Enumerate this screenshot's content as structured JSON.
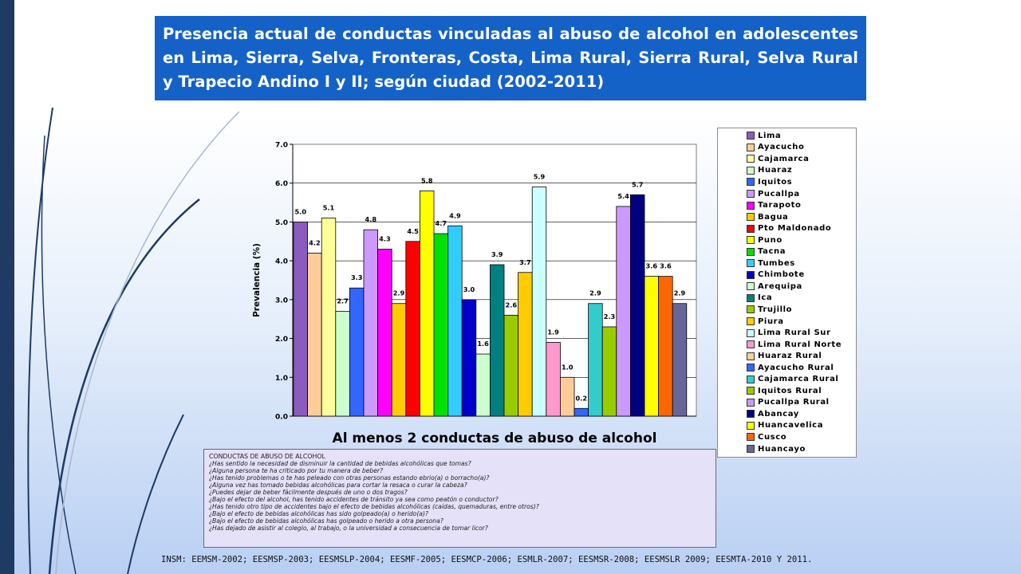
{
  "header": {
    "title": "Presencia actual de conductas vinculadas al abuso de alcohol en adolescentes en Lima, Sierra, Selva, Fronteras, Costa, Lima Rural, Sierra Rural, Selva Rural y Trapecio Andino I y II; según ciudad (2002-2011)"
  },
  "chart_data": {
    "type": "bar",
    "title": "",
    "xlabel": "Al menos 2 conductas de abuso de alcohol",
    "ylabel": "Prevalencia (%)",
    "ylim": [
      0,
      7
    ],
    "yticks": [
      "0.0",
      "1.0",
      "2.0",
      "3.0",
      "4.0",
      "5.0",
      "6.0",
      "7.0"
    ],
    "grid": true,
    "legend_position": "right",
    "series": [
      {
        "name": "Lima",
        "value": 5.0,
        "label": "5.0",
        "color": "#8c5bbf"
      },
      {
        "name": "Ayacucho",
        "value": 4.2,
        "label": "4.2",
        "color": "#ffcc99"
      },
      {
        "name": "Cajamarca",
        "value": 5.1,
        "label": "5.1",
        "color": "#ffff99"
      },
      {
        "name": "Huaraz",
        "value": 2.7,
        "label": "2.7",
        "color": "#ccffcc"
      },
      {
        "name": "Iquitos",
        "value": 3.3,
        "label": "3.3",
        "color": "#3366ff"
      },
      {
        "name": "Pucallpa",
        "value": 4.8,
        "label": "4.8",
        "color": "#cc99ff"
      },
      {
        "name": "Tarapoto",
        "value": 4.3,
        "label": "4.3",
        "color": "#ff00ff"
      },
      {
        "name": "Bagua",
        "value": 2.9,
        "label": "2.9",
        "color": "#ffcc00"
      },
      {
        "name": "Pto Maldonado",
        "value": 4.5,
        "label": "4.5",
        "color": "#ff0000"
      },
      {
        "name": "Puno",
        "value": 5.8,
        "label": "5.8",
        "color": "#ffff00"
      },
      {
        "name": "Tacna",
        "value": 4.7,
        "label": "4.7",
        "color": "#00e000"
      },
      {
        "name": "Tumbes",
        "value": 4.9,
        "label": "4.9",
        "color": "#33ccff"
      },
      {
        "name": "Chimbote",
        "value": 3.0,
        "label": "3.0",
        "color": "#0000cc"
      },
      {
        "name": "Arequipa",
        "value": 1.6,
        "label": "1.6",
        "color": "#ccffcc"
      },
      {
        "name": "Ica",
        "value": 3.9,
        "label": "3.9",
        "color": "#008080"
      },
      {
        "name": "Trujillo",
        "value": 2.6,
        "label": "2.6",
        "color": "#99cc00"
      },
      {
        "name": "Piura",
        "value": 3.7,
        "label": "3.7",
        "color": "#ffcc00"
      },
      {
        "name": "Lima Rural Sur",
        "value": 5.9,
        "label": "5.9",
        "color": "#ccffff"
      },
      {
        "name": "Lima Rural Norte",
        "value": 1.9,
        "label": "1.9",
        "color": "#ff99cc"
      },
      {
        "name": "Huaraz Rural",
        "value": 1.0,
        "label": "1.0",
        "color": "#ffcc99"
      },
      {
        "name": "Ayacucho Rural",
        "value": 0.2,
        "label": "0.2",
        "color": "#3366ff"
      },
      {
        "name": "Cajamarca Rural",
        "value": 2.9,
        "label": "2.9",
        "color": "#33cccc"
      },
      {
        "name": "Iquitos Rural",
        "value": 2.3,
        "label": "2.3",
        "color": "#99cc00"
      },
      {
        "name": "Pucallpa Rural",
        "value": 5.4,
        "label": "5.4",
        "color": "#cc99ff"
      },
      {
        "name": "Abancay",
        "value": 5.7,
        "label": "5.7",
        "color": "#000080"
      },
      {
        "name": "Huancavelica",
        "value": 3.6,
        "label": "3.6",
        "color": "#ffff00"
      },
      {
        "name": "Cusco",
        "value": 3.6,
        "label": "3.6",
        "color": "#ff6600"
      },
      {
        "name": "Huancayo",
        "value": 2.9,
        "label": "2.9",
        "color": "#666699"
      }
    ]
  },
  "questions": {
    "title": "CONDUCTAS DE ABUSO DE ALCOHOL",
    "items": [
      "¿Has sentido la necesidad de disminuir la cantidad de bebidas alcohólicas que tomas?",
      "¿Alguna persona te ha criticado por tu manera de beber?",
      " ¿Has tenido problemas  o te has peleado con otras personas estando ebrio(a)  o borracho(a)?",
      "¿Alguna vez has tomado bebidas alcohólicas para cortar la resaca o curar la cabeza?",
      "¿Puedes  dejar  de beber fácilmente después de uno o dos tragos?",
      "¿Bajo el efecto del alcohol, has tenido accidentes de tránsito ya sea como peatón o conductor?",
      "¿Has tenido otro tipo de accidentes bajo el efecto de bebidas alcohólicas (caídas, quemaduras,  entre otros)?",
      "¿Bajo el efecto de bebidas alcohólicas has sido golpeado(a)  o herido(a)?",
      "¿Bajo el efecto de bebidas alcohólicas has golpeado o herido a otra persona?",
      "¿Has dejado de asistir al colegio, al trabajo, o la universidad a consecuencia de tomar licor?"
    ]
  },
  "footer": {
    "source": "INSM: EEMSM-2002;  EESMSP-2003;  EESMSLP-2004;  EESMF-2005;  EESMCP-2006;  ESMLR-2007;  EESMSR-2008;  EESMSLR 2009;  EESMTA-2010  Y 2011."
  }
}
